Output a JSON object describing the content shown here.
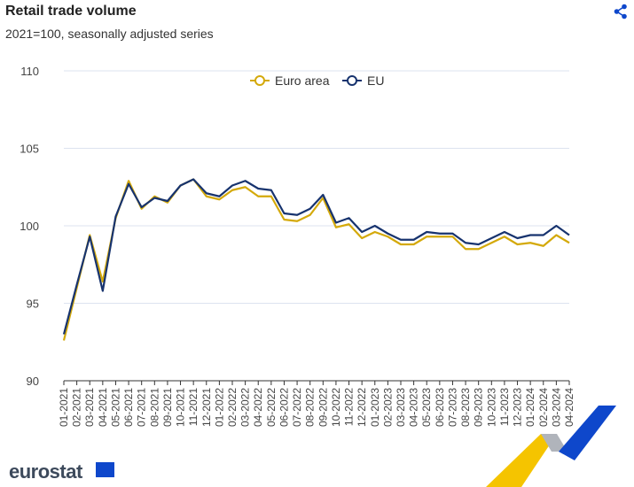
{
  "header": {
    "title": "Retail trade volume",
    "subtitle": "2021=100, seasonally adjusted series"
  },
  "logo": "eurostat",
  "chart_data": {
    "type": "line",
    "title": "Retail trade volume",
    "subtitle": "2021=100, seasonally adjusted series",
    "xlabel": "",
    "ylabel": "",
    "ylim": [
      90,
      110
    ],
    "yticks": [
      90,
      95,
      100,
      105,
      110
    ],
    "grid": true,
    "legend_position": "top-center",
    "x": [
      "01-2021",
      "02-2021",
      "03-2021",
      "04-2021",
      "05-2021",
      "06-2021",
      "07-2021",
      "08-2021",
      "09-2021",
      "10-2021",
      "11-2021",
      "12-2021",
      "01-2022",
      "02-2022",
      "03-2022",
      "04-2022",
      "05-2022",
      "06-2022",
      "07-2022",
      "08-2022",
      "09-2022",
      "10-2022",
      "11-2022",
      "12-2022",
      "01-2023",
      "02-2023",
      "03-2023",
      "04-2023",
      "05-2023",
      "06-2023",
      "07-2023",
      "08-2023",
      "09-2023",
      "10-2023",
      "11-2023",
      "12-2023",
      "01-2024",
      "02-2024",
      "03-2024",
      "04-2024"
    ],
    "series": [
      {
        "name": "Euro area",
        "color": "#d4a90a",
        "values": [
          92.6,
          96.0,
          99.4,
          96.4,
          100.5,
          102.9,
          101.1,
          101.9,
          101.5,
          102.6,
          103.0,
          101.9,
          101.7,
          102.3,
          102.5,
          101.9,
          101.9,
          100.4,
          100.3,
          100.7,
          101.8,
          99.9,
          100.1,
          99.2,
          99.6,
          99.3,
          98.8,
          98.8,
          99.3,
          99.3,
          99.3,
          98.5,
          98.5,
          98.9,
          99.3,
          98.8,
          98.9,
          98.7,
          99.4,
          98.9
        ]
      },
      {
        "name": "EU",
        "color": "#17336e",
        "values": [
          93.0,
          96.2,
          99.3,
          95.8,
          100.6,
          102.7,
          101.2,
          101.8,
          101.6,
          102.6,
          103.0,
          102.1,
          101.9,
          102.6,
          102.9,
          102.4,
          102.3,
          100.8,
          100.7,
          101.1,
          102.0,
          100.2,
          100.5,
          99.6,
          100.0,
          99.5,
          99.1,
          99.1,
          99.6,
          99.5,
          99.5,
          98.9,
          98.8,
          99.2,
          99.6,
          99.2,
          99.4,
          99.4,
          100.0,
          99.4
        ]
      }
    ]
  }
}
